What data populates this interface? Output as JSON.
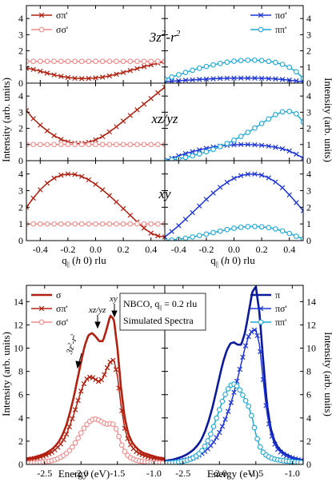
{
  "colors": {
    "dark_red": "#b22010",
    "pink": "#f28b8b",
    "navy": "#0b1a9c",
    "blue": "#1f36d8",
    "cyan": "#1fa9d6"
  },
  "chart_data": [
    {
      "type": "line",
      "panel": "top-left",
      "annotation": "3z²-r²",
      "x": [
        -0.5,
        -0.45,
        -0.4,
        -0.35,
        -0.3,
        -0.25,
        -0.2,
        -0.15,
        -0.1,
        -0.05,
        0.0,
        0.05,
        0.1,
        0.15,
        0.2,
        0.25,
        0.3,
        0.35,
        0.4,
        0.45,
        0.5
      ],
      "series": [
        {
          "name": "σπ'",
          "marker": "x",
          "color": "#b22010",
          "values": [
            0.92,
            0.85,
            0.74,
            0.62,
            0.51,
            0.42,
            0.35,
            0.3,
            0.28,
            0.29,
            0.32,
            0.37,
            0.45,
            0.55,
            0.66,
            0.78,
            0.9,
            1.02,
            1.13,
            1.24,
            1.32
          ]
        },
        {
          "name": "σσ'",
          "marker": "o",
          "color": "#f28b8b",
          "values": [
            1.35,
            1.35,
            1.35,
            1.35,
            1.35,
            1.35,
            1.35,
            1.35,
            1.35,
            1.35,
            1.35,
            1.35,
            1.35,
            1.35,
            1.35,
            1.35,
            1.35,
            1.35,
            1.35,
            1.35,
            1.35
          ]
        }
      ],
      "xlim": [
        -0.5,
        0.5
      ],
      "ylim": [
        0,
        4.8
      ],
      "yticks": [
        0,
        1,
        2,
        3,
        4
      ],
      "legend": "top-left"
    },
    {
      "type": "line",
      "panel": "top-right",
      "annotation": "3z²-r²",
      "x": [
        -0.5,
        -0.45,
        -0.4,
        -0.35,
        -0.3,
        -0.25,
        -0.2,
        -0.15,
        -0.1,
        -0.05,
        0.0,
        0.05,
        0.1,
        0.15,
        0.2,
        0.25,
        0.3,
        0.35,
        0.4,
        0.45,
        0.5
      ],
      "series": [
        {
          "name": "πσ'",
          "marker": "x",
          "color": "#1f36d8",
          "values": [
            0.08,
            0.12,
            0.15,
            0.18,
            0.2,
            0.23,
            0.25,
            0.27,
            0.29,
            0.3,
            0.31,
            0.31,
            0.31,
            0.31,
            0.3,
            0.28,
            0.26,
            0.23,
            0.19,
            0.14,
            0.08
          ]
        },
        {
          "name": "ππ'",
          "marker": "o",
          "color": "#1fa9d6",
          "values": [
            0.25,
            0.38,
            0.52,
            0.66,
            0.8,
            0.92,
            1.03,
            1.13,
            1.22,
            1.3,
            1.36,
            1.4,
            1.42,
            1.42,
            1.4,
            1.35,
            1.28,
            1.16,
            0.98,
            0.7,
            0.3
          ]
        }
      ],
      "xlim": [
        -0.5,
        0.5
      ],
      "ylim": [
        0,
        4.8
      ],
      "yticks": [
        0,
        1,
        2,
        3,
        4
      ],
      "legend": "top-right"
    },
    {
      "type": "line",
      "panel": "middle-left",
      "annotation": "xz/yz",
      "x": [
        -0.5,
        -0.45,
        -0.4,
        -0.35,
        -0.3,
        -0.25,
        -0.2,
        -0.15,
        -0.1,
        -0.05,
        0.0,
        0.05,
        0.1,
        0.15,
        0.2,
        0.25,
        0.3,
        0.35,
        0.4,
        0.45,
        0.5
      ],
      "series": [
        {
          "name": "σπ'",
          "marker": "x",
          "color": "#b22010",
          "values": [
            3.1,
            2.6,
            2.2,
            1.85,
            1.55,
            1.32,
            1.16,
            1.08,
            1.07,
            1.14,
            1.29,
            1.5,
            1.78,
            2.1,
            2.45,
            2.8,
            3.15,
            3.5,
            3.85,
            4.2,
            4.55
          ]
        },
        {
          "name": "σσ'",
          "marker": "o",
          "color": "#f28b8b",
          "values": [
            1.0,
            1.0,
            1.0,
            1.0,
            1.0,
            1.0,
            1.0,
            1.0,
            1.0,
            1.0,
            1.0,
            1.0,
            1.0,
            1.0,
            1.0,
            1.0,
            1.0,
            1.0,
            1.0,
            1.0,
            1.0
          ]
        }
      ],
      "xlim": [
        -0.5,
        0.5
      ],
      "ylim": [
        0,
        4.8
      ],
      "yticks": [
        0,
        1,
        2,
        3,
        4
      ]
    },
    {
      "type": "line",
      "panel": "middle-right",
      "annotation": "xz/yz",
      "x": [
        -0.5,
        -0.45,
        -0.4,
        -0.35,
        -0.3,
        -0.25,
        -0.2,
        -0.15,
        -0.1,
        -0.05,
        0.0,
        0.05,
        0.1,
        0.15,
        0.2,
        0.25,
        0.3,
        0.35,
        0.4,
        0.45,
        0.5
      ],
      "series": [
        {
          "name": "πσ'",
          "marker": "x",
          "color": "#1f36d8",
          "values": [
            0.0,
            0.15,
            0.3,
            0.44,
            0.56,
            0.67,
            0.76,
            0.84,
            0.9,
            0.95,
            0.98,
            1.0,
            1.0,
            0.98,
            0.95,
            0.9,
            0.83,
            0.74,
            0.6,
            0.4,
            0.15
          ]
        },
        {
          "name": "ππ'",
          "marker": "o",
          "color": "#1fa9d6",
          "values": [
            0.0,
            0.05,
            0.12,
            0.2,
            0.3,
            0.42,
            0.55,
            0.7,
            0.87,
            1.06,
            1.27,
            1.5,
            1.75,
            2.02,
            2.3,
            2.58,
            2.85,
            3.02,
            3.05,
            2.9,
            2.4
          ]
        }
      ],
      "xlim": [
        -0.5,
        0.5
      ],
      "ylim": [
        0,
        4.8
      ],
      "yticks": [
        0,
        1,
        2,
        3,
        4
      ]
    },
    {
      "type": "line",
      "panel": "bottom-left",
      "annotation": "xy",
      "x": [
        -0.5,
        -0.45,
        -0.4,
        -0.35,
        -0.3,
        -0.25,
        -0.2,
        -0.15,
        -0.1,
        -0.05,
        0.0,
        0.05,
        0.1,
        0.15,
        0.2,
        0.25,
        0.3,
        0.35,
        0.4,
        0.45,
        0.5
      ],
      "series": [
        {
          "name": "σπ'",
          "marker": "x",
          "color": "#b22010",
          "values": [
            2.0,
            2.55,
            3.05,
            3.45,
            3.75,
            3.93,
            4.0,
            3.97,
            3.85,
            3.65,
            3.38,
            3.05,
            2.7,
            2.32,
            1.92,
            1.52,
            1.12,
            0.75,
            0.45,
            0.28,
            0.22
          ]
        },
        {
          "name": "σσ'",
          "marker": "o",
          "color": "#f28b8b",
          "values": [
            1.0,
            1.0,
            1.0,
            1.0,
            1.0,
            1.0,
            1.0,
            1.0,
            1.0,
            1.0,
            1.0,
            1.0,
            1.0,
            1.0,
            1.0,
            1.0,
            1.0,
            1.0,
            1.0,
            1.0,
            1.0
          ]
        }
      ],
      "xlim": [
        -0.5,
        0.5
      ],
      "ylim": [
        0,
        4.8
      ],
      "yticks": [
        0,
        1,
        2,
        3,
        4
      ],
      "xticks": [
        -0.4,
        -0.2,
        0.0,
        0.2,
        0.4
      ],
      "xlabel": "q|| (h 0) rlu"
    },
    {
      "type": "line",
      "panel": "bottom-right",
      "annotation": "xy",
      "x": [
        -0.5,
        -0.45,
        -0.4,
        -0.35,
        -0.3,
        -0.25,
        -0.2,
        -0.15,
        -0.1,
        -0.05,
        0.0,
        0.05,
        0.1,
        0.15,
        0.2,
        0.25,
        0.3,
        0.35,
        0.4,
        0.45,
        0.5
      ],
      "series": [
        {
          "name": "πσ'",
          "marker": "x",
          "color": "#1f36d8",
          "values": [
            0.22,
            0.55,
            0.9,
            1.28,
            1.68,
            2.08,
            2.48,
            2.86,
            3.2,
            3.5,
            3.74,
            3.9,
            3.99,
            4.0,
            3.93,
            3.77,
            3.52,
            3.18,
            2.75,
            2.28,
            1.8
          ]
        },
        {
          "name": "ππ'",
          "marker": "o",
          "color": "#1fa9d6",
          "values": [
            0.0,
            0.03,
            0.08,
            0.14,
            0.22,
            0.3,
            0.39,
            0.48,
            0.57,
            0.66,
            0.74,
            0.8,
            0.84,
            0.85,
            0.83,
            0.78,
            0.7,
            0.58,
            0.43,
            0.26,
            0.1
          ]
        }
      ],
      "xlim": [
        -0.5,
        0.5
      ],
      "ylim": [
        0,
        4.8
      ],
      "yticks": [
        0,
        1,
        2,
        3,
        4
      ],
      "xticks": [
        -0.4,
        -0.2,
        0.0,
        0.2,
        0.4
      ],
      "xlabel": "q|| (h 0) rlu"
    },
    {
      "type": "line",
      "panel": "spectra-left",
      "x": [
        -2.75,
        -2.7,
        -2.65,
        -2.6,
        -2.55,
        -2.5,
        -2.45,
        -2.4,
        -2.35,
        -2.3,
        -2.25,
        -2.2,
        -2.15,
        -2.1,
        -2.05,
        -2.0,
        -1.95,
        -1.9,
        -1.85,
        -1.8,
        -1.75,
        -1.7,
        -1.65,
        -1.6,
        -1.55,
        -1.5,
        -1.45,
        -1.4,
        -1.35,
        -1.3,
        -1.25,
        -1.2,
        -1.15,
        -1.1,
        -1.05,
        -1.0,
        -0.95,
        -0.9,
        -0.85
      ],
      "series": [
        {
          "name": "σ",
          "marker": "none",
          "color": "#b22010",
          "values": [
            0.5,
            0.55,
            0.6,
            0.7,
            0.8,
            0.9,
            1.1,
            1.3,
            1.6,
            2.0,
            2.6,
            3.4,
            4.5,
            5.8,
            7.3,
            8.8,
            10.2,
            11.1,
            11.3,
            11.0,
            10.6,
            10.6,
            11.6,
            12.8,
            12.5,
            10.0,
            6.5,
            4.0,
            2.6,
            1.9,
            1.5,
            1.2,
            1.0,
            0.9,
            0.8,
            0.7,
            0.6,
            0.55,
            0.5
          ]
        },
        {
          "name": "σπ'",
          "marker": "x",
          "color": "#b22010",
          "values": [
            0.4,
            0.45,
            0.5,
            0.55,
            0.65,
            0.75,
            0.9,
            1.05,
            1.3,
            1.6,
            2.0,
            2.6,
            3.4,
            4.3,
            5.3,
            6.3,
            7.1,
            7.5,
            7.5,
            7.3,
            7.1,
            7.4,
            8.2,
            8.8,
            9.0,
            7.6,
            5.0,
            3.1,
            2.0,
            1.5,
            1.15,
            0.95,
            0.8,
            0.7,
            0.6,
            0.55,
            0.5,
            0.45,
            0.4
          ]
        },
        {
          "name": "σσ'",
          "marker": "o",
          "color": "#f28b8b",
          "values": [
            0.1,
            0.12,
            0.14,
            0.16,
            0.19,
            0.22,
            0.27,
            0.33,
            0.42,
            0.55,
            0.72,
            0.95,
            1.25,
            1.65,
            2.15,
            2.7,
            3.2,
            3.6,
            3.85,
            3.9,
            3.8,
            3.6,
            3.45,
            3.5,
            3.45,
            2.8,
            1.8,
            1.1,
            0.7,
            0.5,
            0.38,
            0.3,
            0.25,
            0.2,
            0.18,
            0.16,
            0.14,
            0.12,
            0.1
          ]
        }
      ],
      "xlim": [
        -2.75,
        -0.85
      ],
      "ylim": [
        0,
        15.4
      ],
      "yticks": [
        0,
        2,
        4,
        6,
        8,
        10,
        12,
        14
      ],
      "xticks": [
        -2.5,
        -2.0,
        -1.5,
        -1.0
      ],
      "xlabel": "Energy (eV)",
      "legend": "top-left",
      "labels": [
        "3z²-r²",
        "xz/yz",
        "xy"
      ],
      "textbox": [
        "NBCO, q|| = 0.2 rlu",
        "Simulated Spectra"
      ]
    },
    {
      "type": "line",
      "panel": "spectra-right",
      "x": [
        -2.75,
        -2.7,
        -2.65,
        -2.6,
        -2.55,
        -2.5,
        -2.45,
        -2.4,
        -2.35,
        -2.3,
        -2.25,
        -2.2,
        -2.15,
        -2.1,
        -2.05,
        -2.0,
        -1.95,
        -1.9,
        -1.85,
        -1.8,
        -1.75,
        -1.7,
        -1.65,
        -1.6,
        -1.55,
        -1.5,
        -1.45,
        -1.4,
        -1.35,
        -1.3,
        -1.25,
        -1.2,
        -1.15,
        -1.1,
        -1.05,
        -1.0,
        -0.95,
        -0.9,
        -0.85
      ],
      "series": [
        {
          "name": "π",
          "marker": "none",
          "color": "#0b1a9c",
          "values": [
            0.3,
            0.35,
            0.4,
            0.48,
            0.58,
            0.7,
            0.85,
            1.05,
            1.3,
            1.65,
            2.1,
            2.8,
            3.7,
            4.8,
            6.1,
            7.5,
            8.8,
            9.8,
            10.4,
            10.5,
            10.3,
            10.3,
            11.3,
            13.0,
            14.8,
            15.3,
            13.0,
            9.0,
            5.3,
            3.2,
            2.1,
            1.5,
            1.15,
            0.9,
            0.75,
            0.6,
            0.5,
            0.42,
            0.35
          ]
        },
        {
          "name": "πσ'",
          "marker": "x",
          "color": "#1f36d8",
          "values": [
            0.15,
            0.18,
            0.2,
            0.24,
            0.28,
            0.33,
            0.4,
            0.48,
            0.58,
            0.72,
            0.9,
            1.12,
            1.4,
            1.75,
            2.2,
            2.75,
            3.4,
            4.2,
            5.1,
            6.2,
            7.4,
            8.7,
            10.0,
            11.0,
            11.5,
            11.6,
            10.3,
            7.3,
            4.5,
            2.8,
            1.85,
            1.3,
            1.0,
            0.8,
            0.65,
            0.55,
            0.45,
            0.38,
            0.32
          ]
        },
        {
          "name": "ππ'",
          "marker": "o",
          "color": "#1fa9d6",
          "values": [
            0.1,
            0.12,
            0.15,
            0.18,
            0.22,
            0.28,
            0.35,
            0.45,
            0.6,
            0.8,
            1.1,
            1.55,
            2.15,
            2.9,
            3.8,
            4.7,
            5.6,
            6.3,
            6.8,
            6.9,
            6.7,
            6.2,
            5.6,
            5.0,
            4.0,
            2.6,
            1.6,
            1.05,
            0.75,
            0.58,
            0.47,
            0.4,
            0.35,
            0.3,
            0.26,
            0.23,
            0.2,
            0.18,
            0.15
          ]
        }
      ],
      "xlim": [
        -2.75,
        -0.85
      ],
      "ylim": [
        0,
        15.4
      ],
      "yticks": [
        0,
        2,
        4,
        6,
        8,
        10,
        12,
        14
      ],
      "xticks": [
        -2.5,
        -2.0,
        -1.5,
        -1.0
      ],
      "xlabel": "Energy (eV)",
      "legend": "top-right"
    }
  ],
  "text": {
    "ylabel_left_top": "Intensity (arb. units)",
    "ylabel_right_top": "Intensity (arb. units)",
    "ylabel_left_bottom": "Intensity (arb. units)",
    "ylabel_right_bottom": "Intensity (arb. units)",
    "xlabel_q_prefix": "q",
    "xlabel_q_sub": "||",
    "xlabel_q_h": "h",
    "xlabel_q_mid": " 0) rlu",
    "xlabel_q_open": " (",
    "xlabel_energy": "Energy (eV)",
    "ann_3z_main": "3z",
    "ann_3z_sup": "2",
    "ann_3z_tail": "-r",
    "ann_3z_sup2": "2",
    "ann_xzyz": "xz/yz",
    "ann_xy": "xy",
    "box_line1_prefix": "NBCO, q",
    "box_line1_sub": "||",
    "box_line1_suffix": " = 0.2 rlu",
    "box_line2": "Simulated Spectra",
    "spec_label_3z_main": "3z",
    "spec_label_3z_sup": "2",
    "spec_label_3z_tail": "-r",
    "spec_label_3z_sup2": "2",
    "spec_label_xzyz": "xz/yz",
    "spec_label_xy": "xy"
  }
}
